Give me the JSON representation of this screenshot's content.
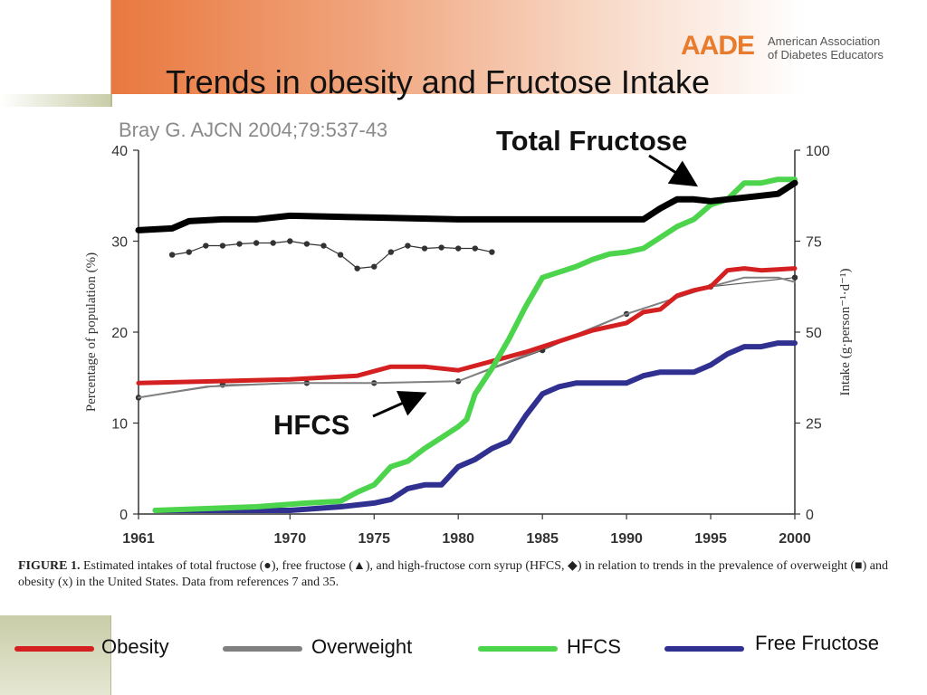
{
  "slide": {
    "title": "Trends in obesity and Fructose Intake",
    "citation": "Bray G. AJCN 2004;79:537-43",
    "logo_mark": "AADE",
    "logo_text_line1": "American Association",
    "logo_text_line2": "of Diabetes Educators",
    "annotation_total_fructose": "Total Fructose",
    "annotation_hfcs": "HFCS",
    "caption_label": "FIGURE 1.",
    "caption_text": "Estimated intakes of total fructose (●), free fructose (▲), and high-fructose corn syrup (HFCS, ◆) in relation to trends in the prevalence of overweight (■) and obesity (x) in the United States. Data from references 7 and 35."
  },
  "legend": [
    {
      "label": "Obesity",
      "color": "#d42020"
    },
    {
      "label": "Overweight",
      "color": "#808080"
    },
    {
      "label": "HFCS",
      "color": "#4cd44c"
    },
    {
      "label": "Free Fructose",
      "color": "#303090"
    }
  ],
  "chart_data": {
    "type": "line",
    "ylabel_left": "Percentage of population (%)",
    "ylabel_right": "Intake (g·person⁻¹·d⁻¹)",
    "xlim": [
      1961,
      2000
    ],
    "ylim_left": [
      0,
      40
    ],
    "ylim_right": [
      0,
      100
    ],
    "x_ticks": [
      "1961",
      "1970",
      "1975",
      "1980",
      "1985",
      "1990",
      "1995",
      "2000"
    ],
    "y_ticks_left": [
      "0",
      "10",
      "20",
      "30",
      "40"
    ],
    "y_ticks_right": [
      "0",
      "25",
      "50",
      "75",
      "100"
    ],
    "series": [
      {
        "name": "Total Fructose",
        "axis": "right",
        "color": "#000000",
        "width": 7,
        "x": [
          1961,
          1963,
          1964,
          1966,
          1968,
          1970,
          1975,
          1980,
          1985,
          1990,
          1991,
          1992,
          1993,
          1994,
          1995,
          1996,
          1997,
          1998,
          1999,
          2000
        ],
        "y": [
          78,
          78.5,
          80.5,
          81,
          81,
          82,
          81.5,
          81,
          81,
          81,
          81,
          84,
          86.5,
          86.5,
          86,
          86.5,
          87,
          87.5,
          88,
          91
        ]
      },
      {
        "name": "Obesity",
        "axis": "left",
        "color": "#d42020",
        "width": 5,
        "x": [
          1961,
          1970,
          1974,
          1976,
          1978,
          1980,
          1982,
          1984,
          1986,
          1988,
          1990,
          1991,
          1992,
          1993,
          1994,
          1995,
          1996,
          1997,
          1998,
          1999,
          2000
        ],
        "y": [
          14.4,
          14.8,
          15.2,
          16.2,
          16.2,
          15.8,
          16.8,
          17.8,
          19,
          20.2,
          21,
          22.2,
          22.5,
          24,
          24.6,
          25,
          26.8,
          27,
          26.8,
          26.9,
          27
        ]
      },
      {
        "name": "Overweight",
        "axis": "left",
        "color": "#808080",
        "width": 2,
        "x": [
          1961,
          1965,
          1970,
          1975,
          1980,
          1985,
          1990,
          1995,
          1997,
          1999,
          2000
        ],
        "y": [
          12.8,
          14,
          14.4,
          14.4,
          14.6,
          18.2,
          22,
          25,
          26,
          26,
          25.5
        ]
      },
      {
        "name": "HFCS",
        "axis": "right",
        "color": "#4cd44c",
        "width": 6,
        "x": [
          1962,
          1965,
          1968,
          1971,
          1973,
          1974,
          1975,
          1976,
          1977,
          1978,
          1979,
          1980,
          1980.5,
          1981,
          1982,
          1983,
          1984,
          1985,
          1986,
          1987,
          1988,
          1989,
          1990,
          1991,
          1992,
          1993,
          1994,
          1995,
          1996,
          1997,
          1998,
          1999,
          2000
        ],
        "y": [
          1,
          1.5,
          2,
          3,
          3.5,
          6,
          8,
          13,
          14.5,
          18,
          21,
          24,
          26,
          33,
          40,
          48,
          57,
          65,
          66.5,
          68,
          70,
          71.5,
          72,
          73,
          76,
          79,
          81,
          85,
          86.5,
          91,
          91,
          92,
          92
        ]
      },
      {
        "name": "Free Fructose",
        "axis": "right",
        "color": "#303090",
        "width": 6,
        "x": [
          1962,
          1966,
          1970,
          1973,
          1975,
          1976,
          1977,
          1978,
          1979,
          1980,
          1981,
          1982,
          1983,
          1984,
          1985,
          1986,
          1987,
          1988,
          1989,
          1990,
          1991,
          1992,
          1993,
          1994,
          1995,
          1996,
          1997,
          1998,
          1999,
          2000
        ],
        "y": [
          1,
          1,
          1,
          2,
          3,
          4,
          7,
          8,
          8,
          13,
          15,
          18,
          20,
          27,
          33,
          35,
          36,
          36,
          36,
          36,
          38,
          39,
          39,
          39,
          41,
          44,
          46,
          46,
          47,
          47
        ]
      },
      {
        "name": "Obesity markers",
        "axis": "left",
        "color": "#555555",
        "width": 1.2,
        "x": [
          1961,
          1966,
          1971,
          1975,
          1980,
          1985,
          1990,
          1995,
          2000
        ],
        "y": [
          12.8,
          14.2,
          14.4,
          14.4,
          14.6,
          18,
          22,
          25,
          26
        ]
      },
      {
        "name": "Total fructose markers (small)",
        "axis": "left",
        "color": "#333333",
        "width": 1.2,
        "x": [
          1963,
          1964,
          1965,
          1966,
          1967,
          1968,
          1969,
          1970,
          1971,
          1972,
          1973,
          1974,
          1975,
          1976,
          1977,
          1978,
          1979,
          1980,
          1981,
          1982
        ],
        "y": [
          28.5,
          28.8,
          29.5,
          29.5,
          29.7,
          29.8,
          29.8,
          30,
          29.7,
          29.5,
          28.5,
          27,
          27.2,
          28.8,
          29.5,
          29.2,
          29.3,
          29.2,
          29.2,
          28.8
        ]
      }
    ]
  }
}
